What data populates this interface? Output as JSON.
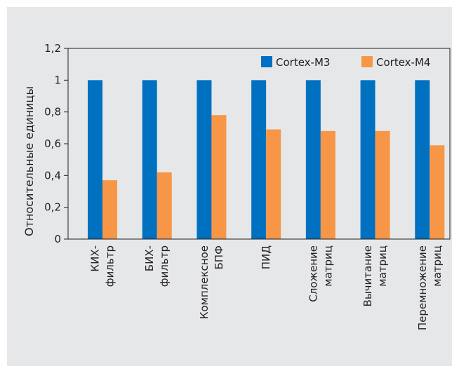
{
  "chart_data": {
    "type": "bar",
    "title": "",
    "xlabel": "",
    "ylabel": "Относительные единицы",
    "ylim": [
      0,
      1.2
    ],
    "yticks": [
      "0",
      "0,2",
      "0,4",
      "0,6",
      "0,8",
      "1",
      "1,2"
    ],
    "grid": false,
    "legend_position": "top-right",
    "categories": [
      [
        "КИХ-",
        "фильтр"
      ],
      [
        "БИХ-",
        "фильтр"
      ],
      [
        "Комплексное",
        "БПФ"
      ],
      [
        "ПИД"
      ],
      [
        "Сложение",
        "матриц"
      ],
      [
        "Вычитание",
        "матриц"
      ],
      [
        "Перемножение",
        "матриц"
      ]
    ],
    "series": [
      {
        "name": "Cortex-M3",
        "color": "#0070c0",
        "values": [
          1,
          1,
          1,
          1,
          1,
          1,
          1
        ]
      },
      {
        "name": "Cortex-M4",
        "color": "#f79646",
        "values": [
          0.37,
          0.42,
          0.78,
          0.69,
          0.68,
          0.68,
          0.59
        ]
      }
    ]
  }
}
